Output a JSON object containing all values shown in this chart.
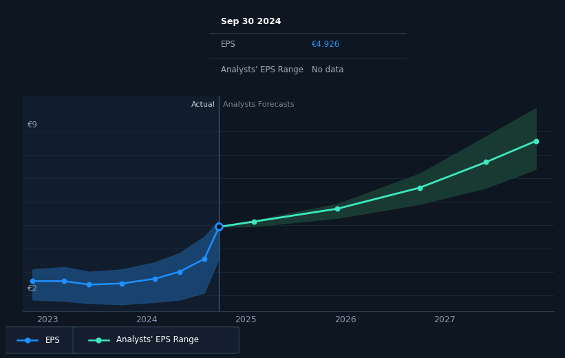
{
  "bg_color": "#0e1621",
  "plot_bg_color": "#0e1621",
  "actual_region_color": "#131f30",
  "grid_color": "#1c2b3a",
  "tooltip_bg": "#0a1018",
  "tooltip_border": "#2a3a4a",
  "title_label": "Sep 30 2024",
  "tooltip_eps_label": "EPS",
  "tooltip_eps_value": "€4.926",
  "tooltip_eps_color": "#2196f3",
  "tooltip_range_label": "Analysts' EPS Range",
  "tooltip_range_value": "No data",
  "actual_label": "Actual",
  "forecast_label": "Analysts Forecasts",
  "y_label_9": "€9",
  "y_label_2": "€2",
  "x_ticks": [
    2023,
    2024,
    2025,
    2026,
    2027
  ],
  "divider_x": 2024.73,
  "eps_actual_x": [
    2022.85,
    2023.17,
    2023.42,
    2023.75,
    2024.08,
    2024.33,
    2024.58,
    2024.73
  ],
  "eps_actual_y": [
    2.6,
    2.6,
    2.45,
    2.5,
    2.7,
    3.0,
    3.55,
    4.926
  ],
  "eps_actual_band_upper": [
    3.1,
    3.2,
    3.0,
    3.1,
    3.4,
    3.8,
    4.5,
    5.2
  ],
  "eps_actual_band_lower": [
    1.8,
    1.75,
    1.65,
    1.6,
    1.7,
    1.8,
    2.1,
    3.6
  ],
  "eps_forecast_x": [
    2024.73,
    2025.08,
    2025.92,
    2026.75,
    2027.42,
    2027.92
  ],
  "eps_forecast_y": [
    4.926,
    5.15,
    5.7,
    6.6,
    7.7,
    8.6
  ],
  "eps_forecast_upper": [
    4.926,
    5.2,
    5.9,
    7.2,
    8.8,
    10.0
  ],
  "eps_forecast_lower": [
    4.926,
    4.95,
    5.3,
    5.9,
    6.6,
    7.4
  ],
  "actual_line_color": "#1e90ff",
  "actual_band_color": "#1a4a7a",
  "forecast_line_color": "#3de8c0",
  "forecast_band_color": "#1a3d35",
  "ylim": [
    1.3,
    10.5
  ],
  "xlim": [
    2022.75,
    2028.1
  ],
  "label_text_color": "#8a9ab0",
  "actual_forecast_divider_color": "#3a5a7a",
  "legend_box_bg": "#141e2e",
  "legend_box_border": "#2a3a4a"
}
